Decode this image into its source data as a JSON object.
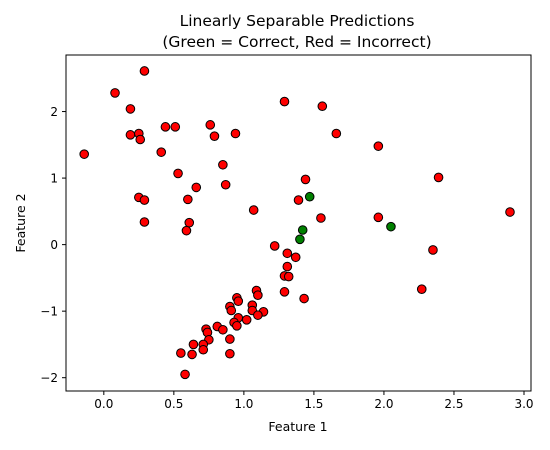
{
  "chart_data": {
    "type": "scatter",
    "title_line1": "Linearly Separable Predictions",
    "title_line2": "(Green = Correct, Red = Incorrect)",
    "xlabel": "Feature 1",
    "ylabel": "Feature 2",
    "xlim": [
      -0.27,
      3.05
    ],
    "ylim": [
      -2.2,
      2.85
    ],
    "x_ticks": [
      0.0,
      0.5,
      1.0,
      1.5,
      2.0,
      2.5,
      3.0
    ],
    "x_tick_labels": [
      "0.0",
      "0.5",
      "1.0",
      "1.5",
      "2.0",
      "2.5",
      "3.0"
    ],
    "y_ticks": [
      -2,
      -1,
      0,
      1,
      2
    ],
    "y_tick_labels": [
      "−2",
      "−1",
      "0",
      "1",
      "2"
    ],
    "grid": false,
    "legend": "none",
    "colors": {
      "correct": "#008000",
      "incorrect": "#ff0000",
      "edge": "#000000"
    },
    "series": [
      {
        "status": "incorrect",
        "points": [
          [
            0.29,
            2.61
          ],
          [
            0.08,
            2.28
          ],
          [
            0.19,
            2.04
          ],
          [
            1.29,
            2.15
          ],
          [
            1.56,
            2.08
          ],
          [
            -0.14,
            1.36
          ],
          [
            0.19,
            1.65
          ],
          [
            0.25,
            1.67
          ],
          [
            0.26,
            1.58
          ],
          [
            0.44,
            1.77
          ],
          [
            0.51,
            1.77
          ],
          [
            0.41,
            1.39
          ],
          [
            0.76,
            1.8
          ],
          [
            0.79,
            1.63
          ],
          [
            0.94,
            1.67
          ],
          [
            1.66,
            1.67
          ],
          [
            1.96,
            1.48
          ],
          [
            0.85,
            1.2
          ],
          [
            0.53,
            1.07
          ],
          [
            0.66,
            0.86
          ],
          [
            0.87,
            0.9
          ],
          [
            1.44,
            0.98
          ],
          [
            2.39,
            1.01
          ],
          [
            0.25,
            0.71
          ],
          [
            0.29,
            0.67
          ],
          [
            0.6,
            0.68
          ],
          [
            1.39,
            0.67
          ],
          [
            1.07,
            0.52
          ],
          [
            0.29,
            0.34
          ],
          [
            0.61,
            0.33
          ],
          [
            0.59,
            0.21
          ],
          [
            1.55,
            0.4
          ],
          [
            1.96,
            0.41
          ],
          [
            2.9,
            0.49
          ],
          [
            1.22,
            -0.02
          ],
          [
            1.31,
            -0.13
          ],
          [
            1.37,
            -0.19
          ],
          [
            2.35,
            -0.08
          ],
          [
            1.31,
            -0.33
          ],
          [
            1.29,
            -0.47
          ],
          [
            1.32,
            -0.48
          ],
          [
            1.29,
            -0.71
          ],
          [
            1.43,
            -0.81
          ],
          [
            2.27,
            -0.67
          ],
          [
            1.09,
            -0.69
          ],
          [
            1.1,
            -0.76
          ],
          [
            0.95,
            -0.8
          ],
          [
            0.96,
            -0.85
          ],
          [
            0.9,
            -0.93
          ],
          [
            1.06,
            -0.91
          ],
          [
            0.91,
            -0.99
          ],
          [
            1.06,
            -0.99
          ],
          [
            1.14,
            -1.01
          ],
          [
            1.1,
            -1.06
          ],
          [
            0.96,
            -1.1
          ],
          [
            1.02,
            -1.13
          ],
          [
            0.93,
            -1.17
          ],
          [
            0.95,
            -1.22
          ],
          [
            0.81,
            -1.23
          ],
          [
            0.85,
            -1.28
          ],
          [
            0.73,
            -1.27
          ],
          [
            0.74,
            -1.32
          ],
          [
            0.75,
            -1.43
          ],
          [
            0.9,
            -1.42
          ],
          [
            0.71,
            -1.5
          ],
          [
            0.64,
            -1.5
          ],
          [
            0.71,
            -1.58
          ],
          [
            0.9,
            -1.64
          ],
          [
            0.55,
            -1.63
          ],
          [
            0.63,
            -1.65
          ],
          [
            0.58,
            -1.95
          ]
        ]
      },
      {
        "status": "correct",
        "points": [
          [
            1.47,
            0.72
          ],
          [
            1.42,
            0.22
          ],
          [
            1.4,
            0.08
          ],
          [
            2.05,
            0.27
          ]
        ]
      }
    ]
  }
}
